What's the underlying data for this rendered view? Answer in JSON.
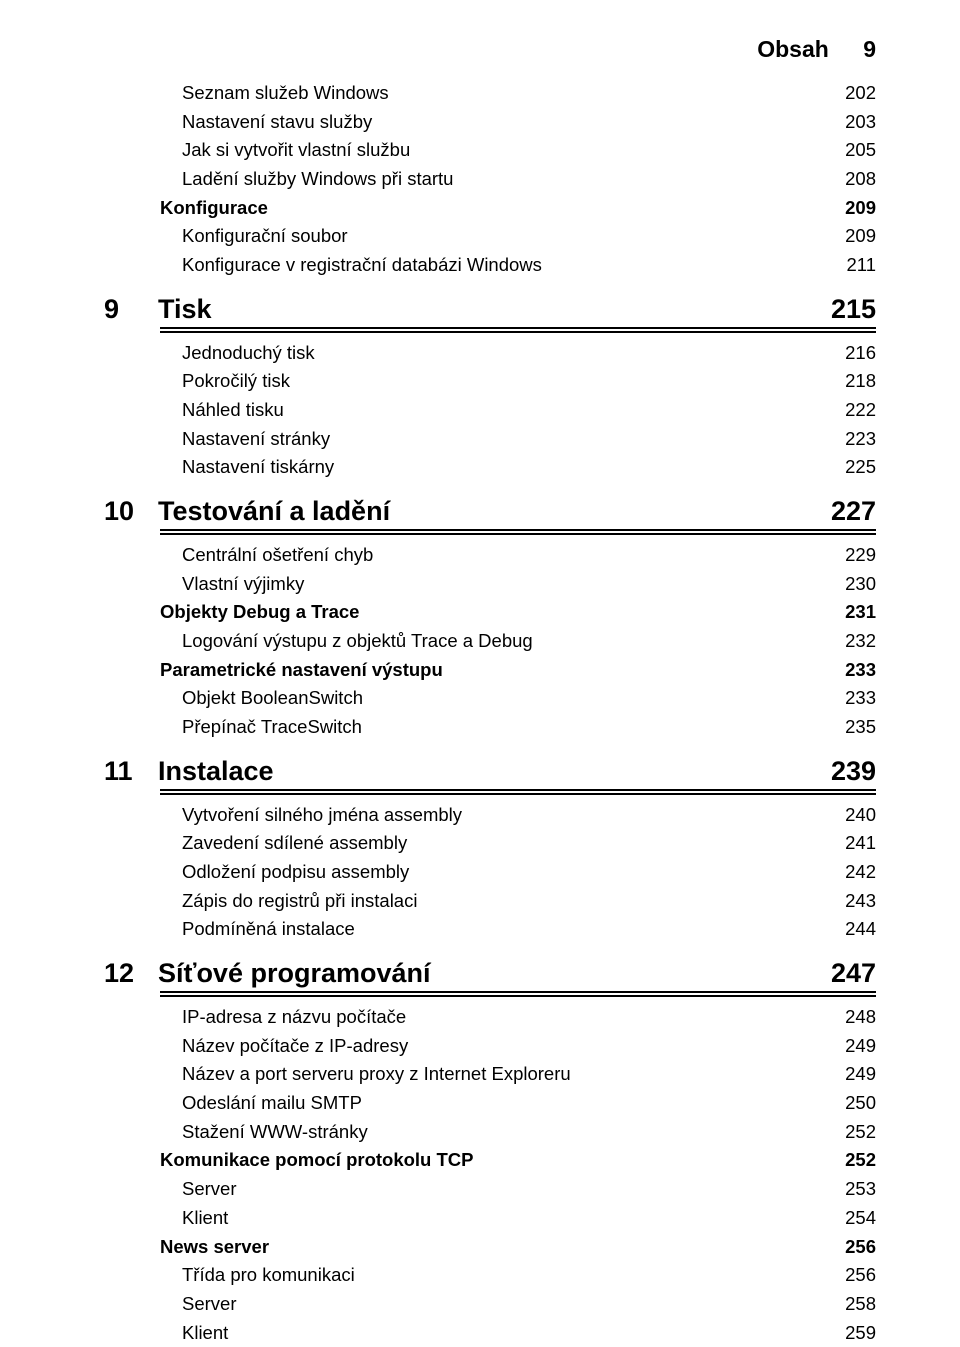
{
  "header": {
    "label": "Obsah",
    "page": "9"
  },
  "intro_items": [
    {
      "label": "Seznam služeb Windows",
      "page": "202",
      "indent": 2,
      "bold": false
    },
    {
      "label": "Nastavení stavu služby",
      "page": "203",
      "indent": 2,
      "bold": false
    },
    {
      "label": "Jak si vytvořit vlastní službu",
      "page": "205",
      "indent": 2,
      "bold": false
    },
    {
      "label": "Ladění služby Windows při startu",
      "page": "208",
      "indent": 2,
      "bold": false
    },
    {
      "label": "Konfigurace",
      "page": "209",
      "indent": 1,
      "bold": true
    },
    {
      "label": "Konfigurační soubor",
      "page": "209",
      "indent": 2,
      "bold": false
    },
    {
      "label": "Konfigurace v registrační databázi Windows",
      "page": "211",
      "indent": 2,
      "bold": false
    }
  ],
  "chapters": [
    {
      "num": "9",
      "title": "Tisk",
      "page": "215",
      "items": [
        {
          "label": "Jednoduchý tisk",
          "page": "216",
          "indent": 2,
          "bold": false
        },
        {
          "label": "Pokročilý tisk",
          "page": "218",
          "indent": 2,
          "bold": false
        },
        {
          "label": "Náhled tisku",
          "page": "222",
          "indent": 2,
          "bold": false
        },
        {
          "label": "Nastavení stránky",
          "page": "223",
          "indent": 2,
          "bold": false
        },
        {
          "label": "Nastavení tiskárny",
          "page": "225",
          "indent": 2,
          "bold": false
        }
      ]
    },
    {
      "num": "10",
      "title": "Testování a ladění",
      "page": "227",
      "items": [
        {
          "label": "Centrální ošetření chyb",
          "page": "229",
          "indent": 2,
          "bold": false
        },
        {
          "label": "Vlastní výjimky",
          "page": "230",
          "indent": 2,
          "bold": false
        },
        {
          "label": "Objekty Debug a Trace",
          "page": "231",
          "indent": 1,
          "bold": true
        },
        {
          "label": "Logování výstupu z objektů Trace a Debug",
          "page": "232",
          "indent": 2,
          "bold": false
        },
        {
          "label": "Parametrické nastavení výstupu",
          "page": "233",
          "indent": 1,
          "bold": true
        },
        {
          "label": "Objekt BooleanSwitch",
          "page": "233",
          "indent": 2,
          "bold": false
        },
        {
          "label": "Přepínač TraceSwitch",
          "page": "235",
          "indent": 2,
          "bold": false
        }
      ]
    },
    {
      "num": "11",
      "title": "Instalace",
      "page": "239",
      "items": [
        {
          "label": "Vytvoření silného jména assembly",
          "page": "240",
          "indent": 2,
          "bold": false
        },
        {
          "label": "Zavedení sdílené assembly",
          "page": "241",
          "indent": 2,
          "bold": false
        },
        {
          "label": "Odložení podpisu assembly",
          "page": "242",
          "indent": 2,
          "bold": false
        },
        {
          "label": "Zápis do registrů při instalaci",
          "page": "243",
          "indent": 2,
          "bold": false
        },
        {
          "label": "Podmíněná instalace",
          "page": "244",
          "indent": 2,
          "bold": false
        }
      ]
    },
    {
      "num": "12",
      "title": "Síťové programování",
      "page": "247",
      "items": [
        {
          "label": "IP-adresa z názvu počítače",
          "page": "248",
          "indent": 2,
          "bold": false
        },
        {
          "label": "Název počítače z IP-adresy",
          "page": "249",
          "indent": 2,
          "bold": false
        },
        {
          "label": "Název a port serveru proxy z Internet Exploreru",
          "page": "249",
          "indent": 2,
          "bold": false
        },
        {
          "label": "Odeslání mailu SMTP",
          "page": "250",
          "indent": 2,
          "bold": false
        },
        {
          "label": "Stažení WWW-stránky",
          "page": "252",
          "indent": 2,
          "bold": false
        },
        {
          "label": "Komunikace pomocí protokolu TCP",
          "page": "252",
          "indent": 1,
          "bold": true
        },
        {
          "label": "Server",
          "page": "253",
          "indent": 2,
          "bold": false
        },
        {
          "label": "Klient",
          "page": "254",
          "indent": 2,
          "bold": false
        },
        {
          "label": "News server",
          "page": "256",
          "indent": 1,
          "bold": true
        },
        {
          "label": "Třída pro komunikaci",
          "page": "256",
          "indent": 2,
          "bold": false
        },
        {
          "label": "Server",
          "page": "258",
          "indent": 2,
          "bold": false
        },
        {
          "label": "Klient",
          "page": "259",
          "indent": 2,
          "bold": false
        }
      ]
    }
  ]
}
